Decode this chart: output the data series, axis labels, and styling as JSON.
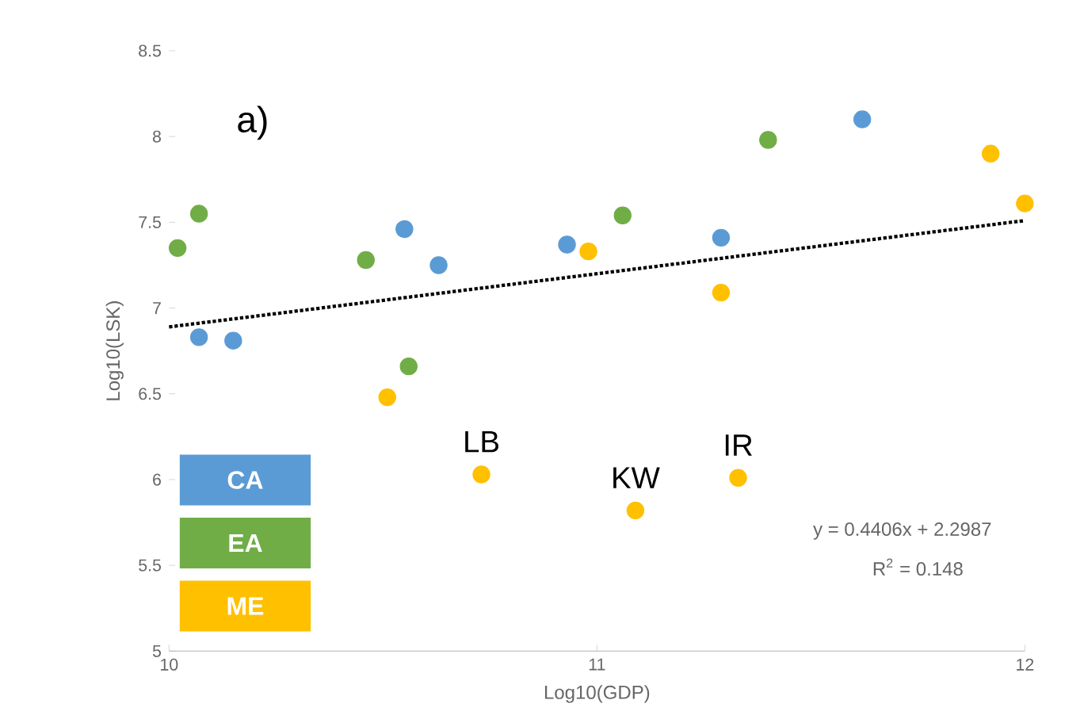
{
  "chart_data": {
    "type": "scatter",
    "xlabel": "Log10(GDP)",
    "ylabel": "Log10(LSK)",
    "xlim": [
      10,
      12
    ],
    "xticks": [
      10,
      11,
      12
    ],
    "ylim": [
      5,
      8.5
    ],
    "yticks": [
      5,
      5.5,
      6,
      6.5,
      7,
      7.5,
      8,
      8.5
    ],
    "grid": false,
    "legend": "bottom left",
    "marker": "circle",
    "series": [
      {
        "name": "CA",
        "color": "#5b9bd5",
        "x": [
          10.07,
          10.15,
          10.55,
          10.63,
          10.93,
          11.29,
          11.62
        ],
        "values": [
          6.83,
          6.81,
          7.46,
          7.25,
          7.37,
          7.41,
          8.1
        ]
      },
      {
        "name": "EA",
        "color": "#70ad47",
        "x": [
          10.02,
          10.07,
          10.46,
          10.56,
          11.06,
          11.4
        ],
        "values": [
          7.35,
          7.55,
          7.28,
          6.66,
          7.54,
          7.98
        ]
      },
      {
        "name": "ME",
        "color": "#ffc000",
        "x": [
          10.51,
          10.73,
          10.98,
          11.09,
          11.29,
          11.33,
          11.92,
          12.0
        ],
        "values": [
          6.48,
          6.03,
          7.33,
          5.82,
          7.09,
          6.01,
          7.9,
          7.61
        ]
      },
      {
        "type": "line",
        "color": "#000000",
        "line_style": "dotted",
        "marker": "none",
        "x": [
          10,
          12
        ],
        "values": [
          6.89,
          7.51
        ]
      }
    ],
    "annotations": [
      "a)",
      {
        "text": "LB",
        "x": 10.73,
        "y": 6.03
      },
      {
        "text": "KW",
        "x": 11.09,
        "y": 5.82
      },
      {
        "text": "IR",
        "x": 11.33,
        "y": 6.01
      },
      "y = 0.4406x + 2.2987",
      "R$^{2}$ = 0.148"
    ]
  }
}
